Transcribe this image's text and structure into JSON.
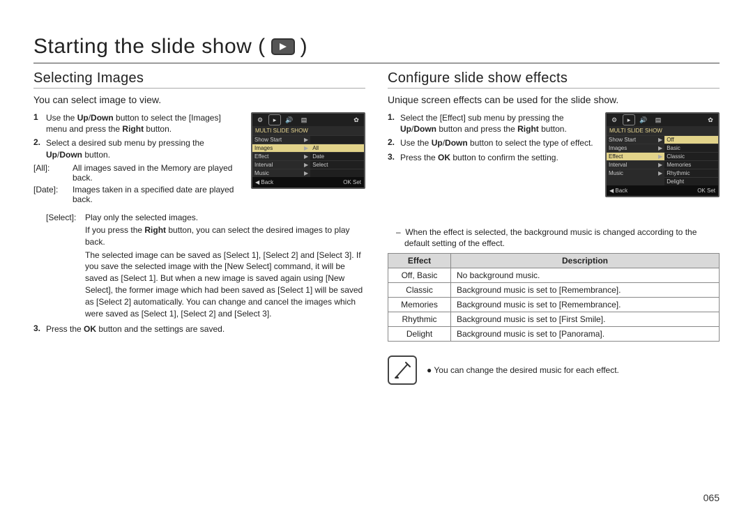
{
  "page_number": "065",
  "main_title": "Starting the slide show (",
  "main_title_close": ")",
  "left": {
    "title": "Selecting Images",
    "intro": "You can select image to view.",
    "steps": [
      {
        "num": "1",
        "html": "Use the <b>Up</b>/<b>Down</b> button to select the [Images] menu and press the <b>Right</b> button."
      },
      {
        "num": "2.",
        "html": "Select a desired sub menu by pressing the <b>Up</b>/<b>Down</b> button."
      }
    ],
    "defs": [
      {
        "key": "[All]:",
        "val": "All images saved in the Memory are played back."
      },
      {
        "key": "[Date]:",
        "val": "Images taken in a specified date are played back."
      },
      {
        "key": "[Select]:",
        "val": "Play only the selected images."
      }
    ],
    "cont1": "If you press the <b>Right</b> button, you can select the desired images to play back.",
    "cont2": "The selected image can be saved as [Select 1], [Select 2] and [Select 3]. If you save the selected image with the [New Select] command, it will be saved as [Select 1]. But when a new image is saved again using [New Select], the former image which had been saved as [Select 1] will be saved as [Select 2] automatically. You can change and cancel the images which were saved as [Select 1], [Select 2] and [Select 3].",
    "step3": {
      "num": "3.",
      "html": "Press the <b>OK</b> button and the settings are saved."
    },
    "screen": {
      "title": "MULTI SLIDE SHOW",
      "left_items": [
        "Show Start",
        "Images",
        "Effect",
        "Interval",
        "Music"
      ],
      "right_items": [
        "",
        "All",
        "Date",
        "Select",
        ""
      ],
      "sel_left_index": 1,
      "sel_right_index": 1,
      "footer_left": "◀  Back",
      "footer_right": "OK  Set"
    }
  },
  "right": {
    "title": "Configure slide show effects",
    "intro": "Unique screen effects can be used for the slide show.",
    "steps": [
      {
        "num": "1.",
        "html": "Select the [Effect] sub menu by pressing the <b>Up</b>/<b>Down</b> button and press the <b>Right</b> button."
      },
      {
        "num": "2.",
        "html": "Use the <b>Up</b>/<b>Down</b> button to select the type of effect."
      },
      {
        "num": "3.",
        "html": "Press the <b>OK</b> button to confirm the setting."
      }
    ],
    "subnote": "When the effect is selected, the background music is changed according to the default setting of the effect.",
    "table": {
      "headers": [
        "Effect",
        "Description"
      ],
      "rows": [
        [
          "Off, Basic",
          "No background music."
        ],
        [
          "Classic",
          "Background music is set to [Remembrance]."
        ],
        [
          "Memories",
          "Background music is set to [Remembrance]."
        ],
        [
          "Rhythmic",
          "Background music is set to [First Smile]."
        ],
        [
          "Delight",
          "Background music is set to [Panorama]."
        ]
      ]
    },
    "note": "You can change the desired music for each effect.",
    "screen": {
      "title": "MULTI SLIDE SHOW",
      "left_items": [
        "Show Start",
        "Images",
        "Effect",
        "Interval",
        "Music"
      ],
      "right_items": [
        "Off",
        "Basic",
        "Classic",
        "Memories",
        "Rhythmic",
        "Delight"
      ],
      "sel_left_index": 2,
      "sel_right_index": 0,
      "footer_left": "◀  Back",
      "footer_right": "OK  Set"
    }
  }
}
